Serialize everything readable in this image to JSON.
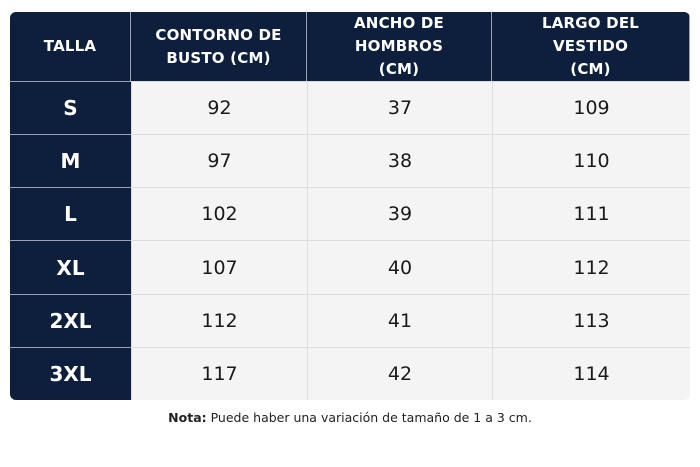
{
  "table": {
    "headers": [
      {
        "lines": [
          "TALLA"
        ]
      },
      {
        "lines": [
          "CONTORNO DE",
          "BUSTO (CM)"
        ]
      },
      {
        "lines": [
          "ANCHO DE HOMBROS",
          "(CM)"
        ]
      },
      {
        "lines": [
          "LARGO DEL VESTIDO",
          "(CM)"
        ]
      }
    ],
    "rows": [
      {
        "size": "S",
        "bust": "92",
        "shoulders": "37",
        "length": "109"
      },
      {
        "size": "M",
        "bust": "97",
        "shoulders": "38",
        "length": "110"
      },
      {
        "size": "L",
        "bust": "102",
        "shoulders": "39",
        "length": "111"
      },
      {
        "size": "XL",
        "bust": "107",
        "shoulders": "40",
        "length": "112"
      },
      {
        "size": "2XL",
        "bust": "112",
        "shoulders": "41",
        "length": "113"
      },
      {
        "size": "3XL",
        "bust": "117",
        "shoulders": "42",
        "length": "114"
      }
    ]
  },
  "note": {
    "label": "Nota:",
    "text": " Puede haber una variación de tamaño de 1 a 3 cm."
  },
  "colors": {
    "header_bg": "#0d1f3d",
    "cell_bg": "#f4f4f4"
  }
}
